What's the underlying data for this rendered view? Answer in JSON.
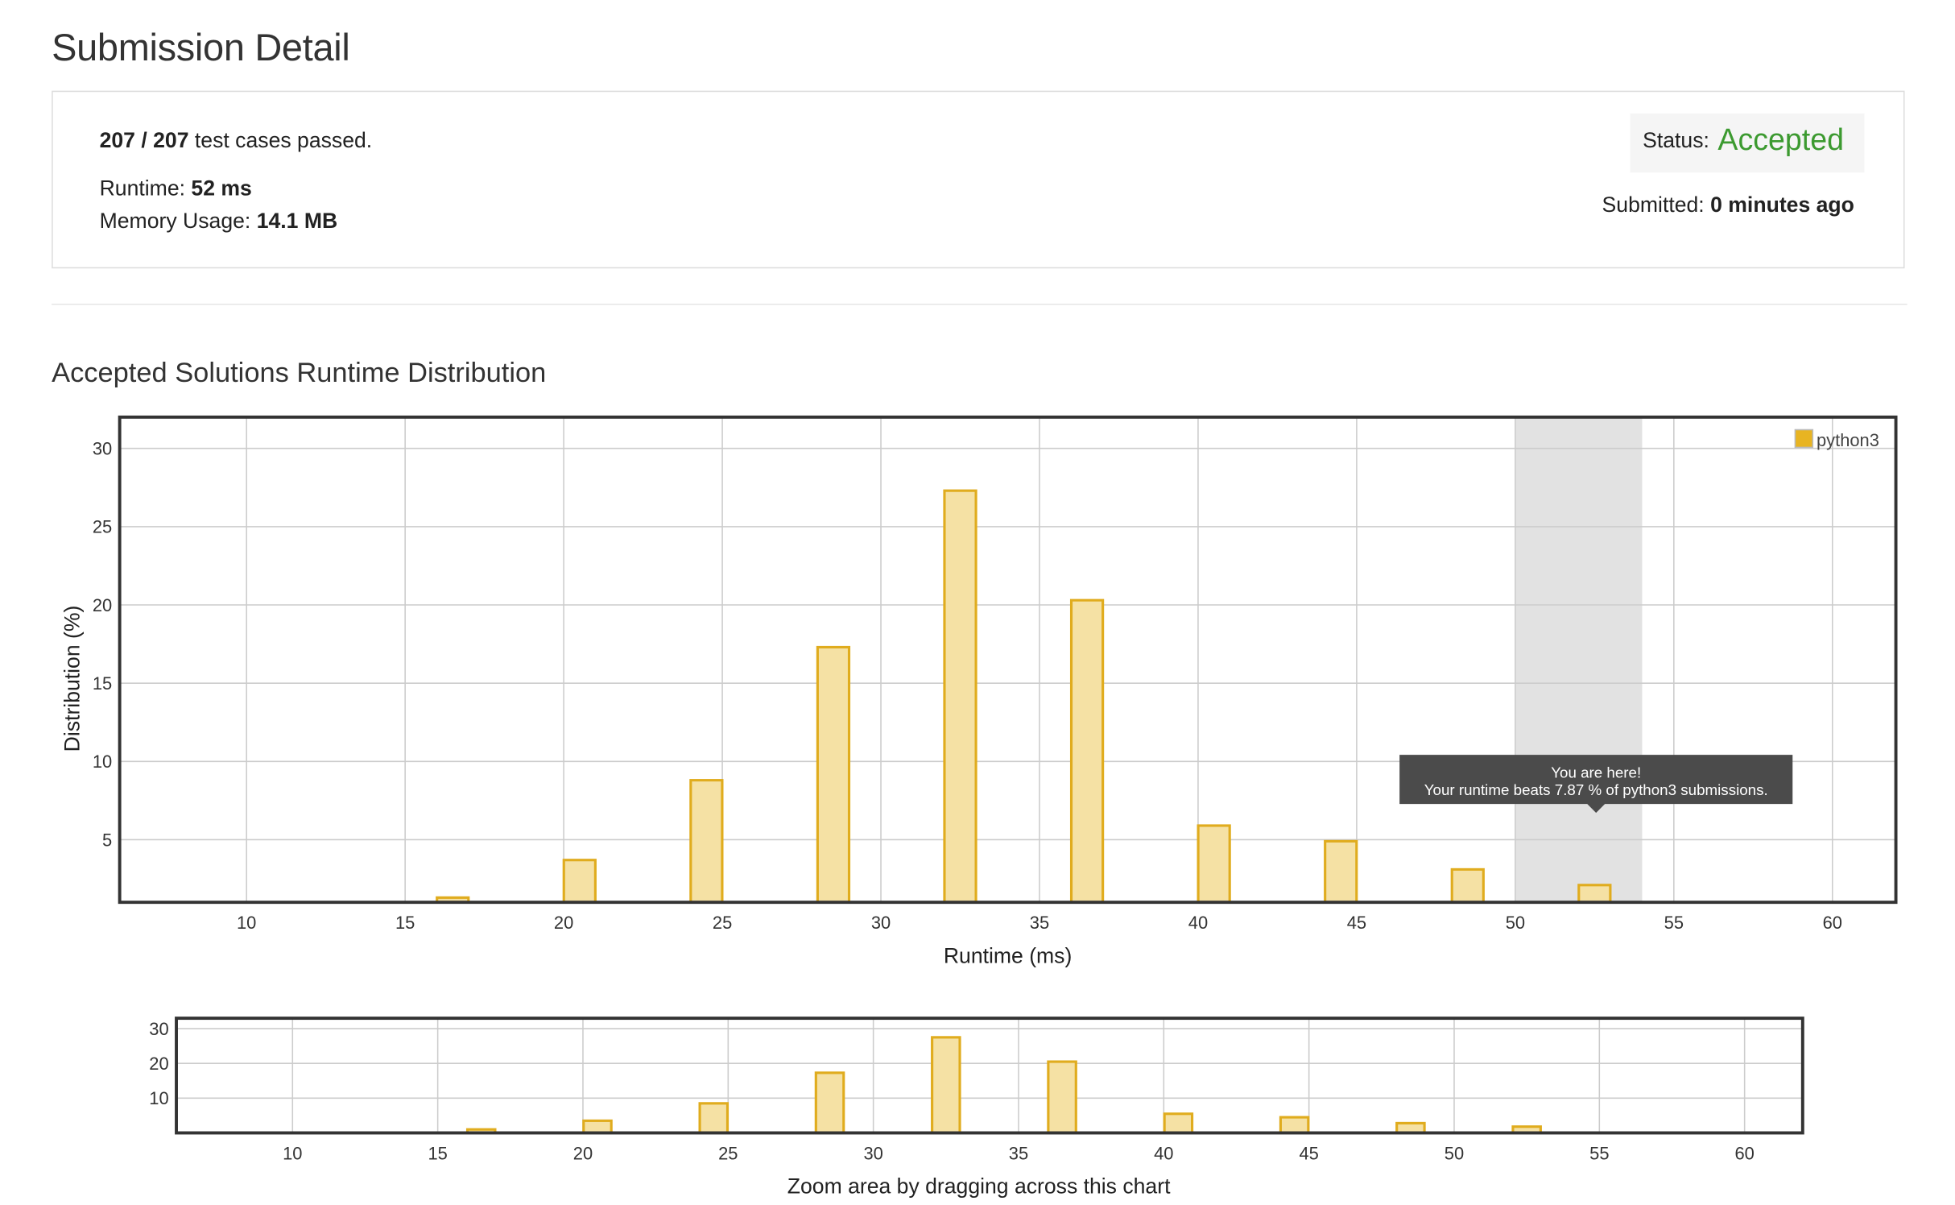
{
  "page": {
    "title": "Submission Detail"
  },
  "result": {
    "passed": "207 / 207",
    "passed_suffix": " test cases passed.",
    "runtime_label": "Runtime: ",
    "runtime_value": "52 ms",
    "memory_label": "Memory Usage: ",
    "memory_value": "14.1 MB",
    "status_label": "Status: ",
    "status_value": "Accepted",
    "submitted_label": "Submitted: ",
    "submitted_value": "0 minutes ago"
  },
  "section": {
    "title": "Accepted Solutions Runtime Distribution"
  },
  "tooltip": {
    "line1": "You are here!",
    "line2": "Your runtime beats 7.87 % of python3 submissions."
  },
  "colors": {
    "bar_fill": "#f5e1a4",
    "bar_stroke": "#e0ac1e",
    "legend_fill": "#e8b422",
    "accepted": "#3c9a30",
    "highlight_band": "#e2e2e2",
    "tooltip_bg": "#4b4b4b"
  },
  "chart_data": [
    {
      "type": "bar",
      "xlabel": "Runtime (ms)",
      "ylabel": "Distribution (%)",
      "xlim": [
        6,
        62
      ],
      "ylim": [
        1,
        32
      ],
      "xticks": [
        10,
        15,
        20,
        25,
        30,
        35,
        40,
        45,
        50,
        55,
        60
      ],
      "yticks": [
        5,
        10,
        15,
        20,
        25,
        30
      ],
      "highlight_range": [
        50,
        54
      ],
      "grid": true,
      "legend": "top-right",
      "series": [
        {
          "name": "python3",
          "x": [
            16.5,
            20.5,
            24.5,
            28.5,
            32.5,
            36.5,
            40.5,
            44.5,
            48.5,
            52.5
          ],
          "values": [
            1.3,
            3.7,
            8.8,
            17.3,
            27.3,
            20.3,
            5.9,
            4.9,
            3.1,
            2.1
          ]
        }
      ]
    },
    {
      "type": "bar",
      "xlabel": "Zoom area by dragging across this chart",
      "xlim": [
        6,
        62
      ],
      "ylim": [
        0,
        33
      ],
      "xticks": [
        10,
        15,
        20,
        25,
        30,
        35,
        40,
        45,
        50,
        55,
        60
      ],
      "yticks": [
        10,
        20,
        30
      ],
      "grid": true,
      "series": [
        {
          "x": [
            16.5,
            20.5,
            24.5,
            28.5,
            32.5,
            36.5,
            40.5,
            44.5,
            48.5,
            52.5
          ],
          "values": [
            1.0,
            3.5,
            8.5,
            17.3,
            27.5,
            20.5,
            5.5,
            4.5,
            2.8,
            1.8
          ]
        }
      ]
    }
  ]
}
